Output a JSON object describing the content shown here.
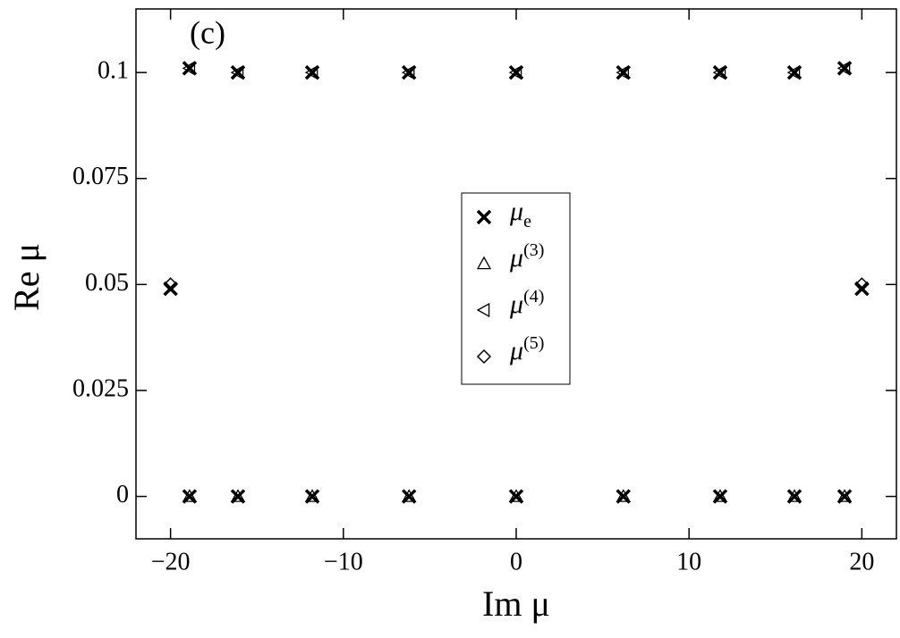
{
  "chart_data": {
    "type": "scatter",
    "annotation": "(c)",
    "xlabel": "Im μ",
    "ylabel": "Re μ",
    "xlim": [
      -22,
      22
    ],
    "ylim": [
      -0.01,
      0.115
    ],
    "xticks": [
      {
        "value": -20,
        "label": "−20"
      },
      {
        "value": -10,
        "label": "−10"
      },
      0,
      10,
      20
    ],
    "yticks": [
      0,
      0.025,
      0.05,
      0.075,
      0.1
    ],
    "legend": "center",
    "series": [
      {
        "name": "μe",
        "marker": "x",
        "color": "#000000",
        "x": [
          -20,
          -18.9,
          -16.1,
          -11.8,
          -6.2,
          0,
          6.2,
          11.8,
          16.1,
          19,
          20,
          -18.9,
          -16.1,
          -11.8,
          -6.2,
          0,
          6.2,
          11.8,
          16.1,
          19
        ],
        "values": [
          0.049,
          0.101,
          0.1,
          0.1,
          0.1,
          0.1,
          0.1,
          0.1,
          0.1,
          0.101,
          0.049,
          0,
          0,
          0,
          0,
          0,
          0,
          0,
          0,
          0
        ]
      },
      {
        "name": "μ(3)",
        "marker": "triangle-up",
        "color": "#000000",
        "x": [
          -18.9,
          -16.1,
          -11.8,
          -6.2,
          0,
          6.2,
          11.8,
          16.1,
          19
        ],
        "values": [
          0,
          0,
          0,
          0,
          0,
          0,
          0,
          0,
          0
        ]
      },
      {
        "name": "μ(4)",
        "marker": "triangle-left",
        "color": "#000000",
        "x": [
          -18.9,
          -16.1,
          -11.8,
          -6.2,
          0,
          6.2,
          11.8,
          16.1,
          19
        ],
        "values": [
          0.101,
          0.1,
          0.1,
          0.1,
          0.1,
          0.1,
          0.1,
          0.1,
          0.101
        ]
      },
      {
        "name": "μ(5)",
        "marker": "diamond",
        "color": "#000000",
        "x": [
          -20,
          20
        ],
        "values": [
          0.05,
          0.05
        ]
      }
    ]
  }
}
